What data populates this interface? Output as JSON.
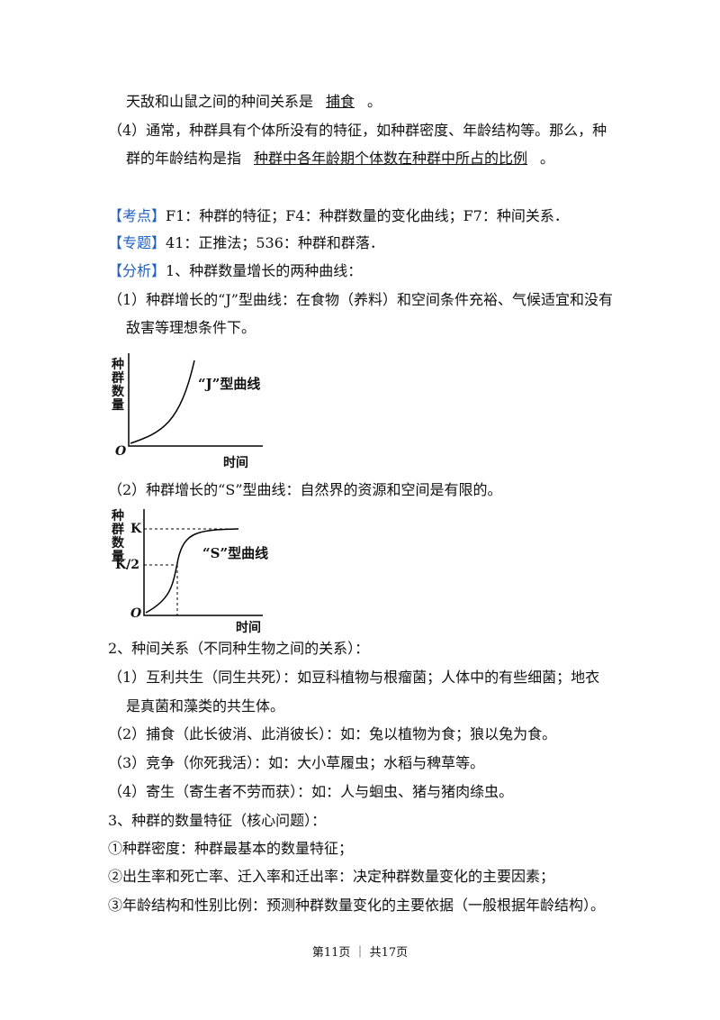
{
  "answer": {
    "line1": [
      "天敌和山鼠之间的种间关系是",
      "捕食",
      "。"
    ],
    "line2": "（4）通常，种群具有个体所没有的特征，如种群密度、年龄结构等。那么，种",
    "line3": [
      "群的年龄结构是指",
      "种群中各年龄期个体数在种群中所占的比例",
      "。"
    ]
  },
  "kaodian": {
    "label": "【考点】",
    "text": "F1：种群的特征；F4：种群数量的变化曲线；F7：种间关系．"
  },
  "zhuanti": {
    "label": "【专题】",
    "text": "41：正推法；536：种群和群落．"
  },
  "fenxi": {
    "label": "【分析】",
    "text": "1、种群数量增长的两种曲线："
  },
  "j_intro": [
    "（1）种群增长的“J”型曲线：在食物（养料）和空间条件充裕、气候适宜和没有",
    "敌害等理想条件下。"
  ],
  "figure_j": {
    "y_label": "种群数量",
    "x_label": "时间",
    "origin": "O",
    "curve_label": "“J”型曲线"
  },
  "s_intro": "（2）种群增长的“S”型曲线：自然界的资源和空间是有限的。",
  "figure_s": {
    "y_label": "种群数量",
    "x_label": "时间",
    "origin": "O",
    "k": "K",
    "k_half": "K/2",
    "curve_label": "“S”型曲线"
  },
  "relations": [
    "2、种间关系（不同种生物之间的关系）：",
    "（1）互利共生（同生共死）：如豆科植物与根瘤菌；人体中的有些细菌；地衣",
    "是真菌和藻类的共生体。",
    "（2）捕食（此长彼消、此消彼长）：如：兔以植物为食；狼以兔为食。",
    "（3）竞争（你死我活）：如：大小草履虫；水稻与稗草等。",
    "（4）寄生（寄生者不劳而获）：如：人与蛔虫、猪与猪肉绦虫。"
  ],
  "features": [
    "3、种群的数量特征（核心问题）：",
    "①种群密度：种群最基本的数量特征；",
    "②出生率和死亡率、迁入率和迁出率：决定种群数量变化的主要因素；",
    "③年龄结构和性别比例：预测种群数量变化的主要依据（一般根据年龄结构）。"
  ],
  "footer": "第11页 ｜ 共17页"
}
